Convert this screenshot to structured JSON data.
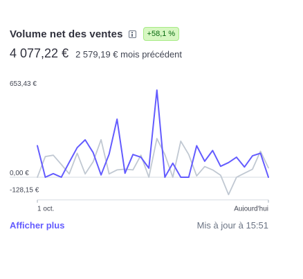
{
  "widget": {
    "title": "Volume net des ventes",
    "info_icon": "info-icon",
    "badge": "+58,1 %",
    "current_value": "4 077,22 €",
    "previous_value": "2 579,19 € mois précédent",
    "show_more": "Afficher plus",
    "updated": "Mis à jour à 15:51"
  },
  "colors": {
    "current_series": "#635bff",
    "previous_series": "#c0c8d2",
    "badge_bg": "#d7f7c2",
    "badge_text": "#05690d",
    "link": "#635bff"
  },
  "chart_data": {
    "type": "line",
    "y_tick_labels": [
      "653,43 €",
      "0,00 €",
      "-128,15 €"
    ],
    "y_ticks": [
      653.43,
      0,
      -128.15
    ],
    "ylim": [
      -128.15,
      653.43
    ],
    "x_tick_labels": [
      "1 oct.",
      "Aujourd'hui"
    ],
    "grid": false,
    "series": [
      {
        "values": [
          236,
          0,
          27,
          0,
          112,
          222,
          280,
          185,
          17,
          172,
          435,
          30,
          170,
          150,
          68,
          653,
          0,
          105,
          0,
          0,
          236,
          120,
          200,
          82,
          110,
          150,
          77,
          160,
          180,
          0
        ]
      },
      {
        "values": [
          0,
          155,
          165,
          96,
          25,
          180,
          25,
          115,
          281,
          25,
          55,
          60,
          55,
          165,
          0,
          290,
          170,
          0,
          270,
          170,
          10,
          80,
          55,
          15,
          -130,
          0,
          30,
          60,
          195,
          70
        ]
      }
    ]
  }
}
